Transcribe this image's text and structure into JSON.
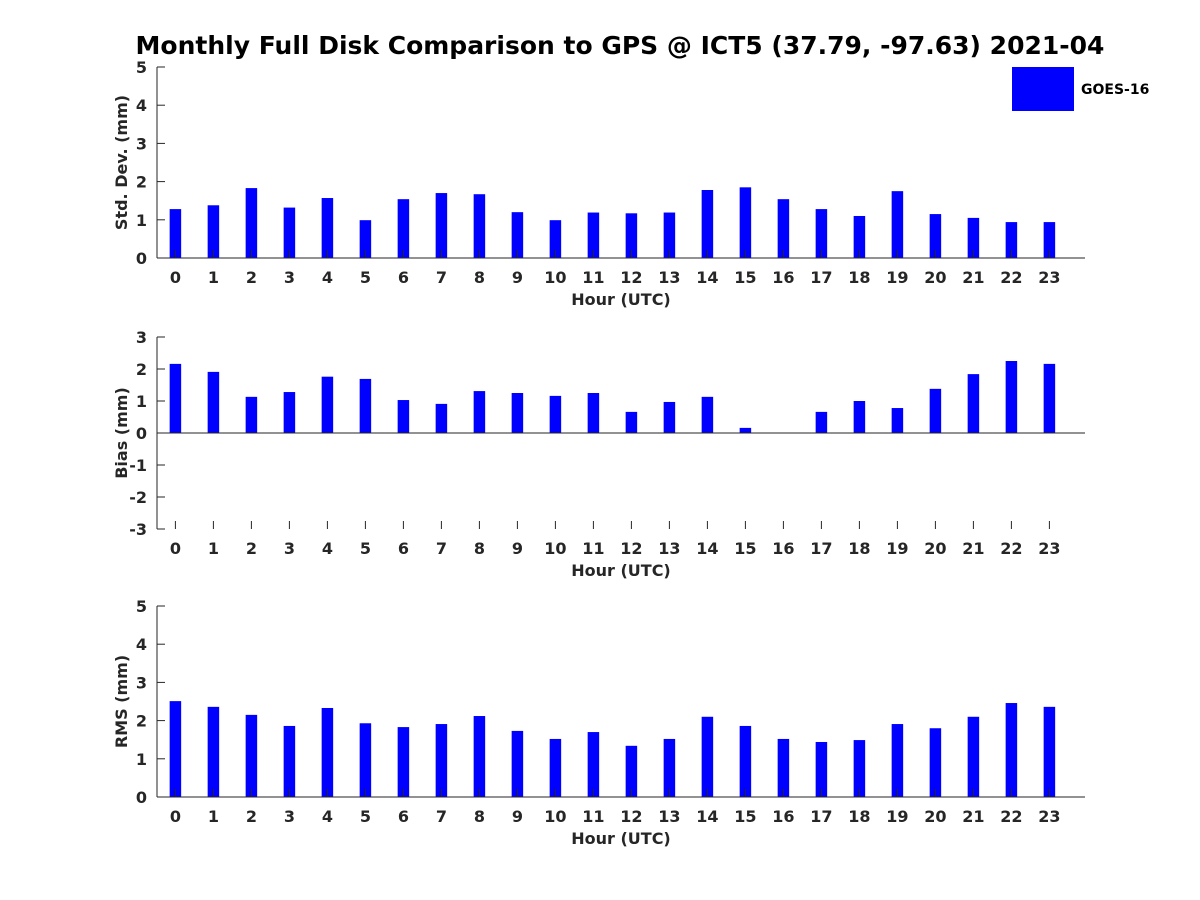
{
  "chart_data": {
    "type": "bar",
    "title": "Monthly Full Disk Comparison to GPS @ ICT5 (37.79, -97.63) 2021-04",
    "legend": {
      "placement": "top-right",
      "entries": [
        "GOES-16"
      ]
    },
    "series_color": "#0000ff",
    "categories": [
      "0",
      "1",
      "2",
      "3",
      "4",
      "5",
      "6",
      "7",
      "8",
      "9",
      "10",
      "11",
      "12",
      "13",
      "14",
      "15",
      "16",
      "17",
      "18",
      "19",
      "20",
      "21",
      "22",
      "23"
    ],
    "panels": [
      {
        "ylabel": "Std. Dev. (mm)",
        "xlabel": "Hour (UTC)",
        "ylim": [
          0,
          5
        ],
        "yticks": [
          0,
          1,
          2,
          3,
          4,
          5
        ],
        "grid": false,
        "series": [
          {
            "name": "GOES-16",
            "values": [
              1.28,
              1.38,
              1.83,
              1.32,
              1.57,
              0.99,
              1.54,
              1.7,
              1.67,
              1.2,
              0.99,
              1.19,
              1.17,
              1.19,
              1.78,
              1.85,
              1.54,
              1.28,
              1.1,
              1.75,
              1.15,
              1.05,
              0.94,
              0.94
            ]
          }
        ]
      },
      {
        "ylabel": "Bias (mm)",
        "xlabel": "Hour (UTC)",
        "ylim": [
          -3,
          3
        ],
        "yticks": [
          -3,
          -2,
          -1,
          0,
          1,
          2,
          3
        ],
        "grid": false,
        "series": [
          {
            "name": "GOES-16",
            "values": [
              2.16,
              1.91,
              1.13,
              1.28,
              1.76,
              1.69,
              1.03,
              0.91,
              1.31,
              1.25,
              1.16,
              1.25,
              0.66,
              0.97,
              1.13,
              0.16,
              0.0,
              0.66,
              1.0,
              0.78,
              1.38,
              1.84,
              2.25,
              2.16
            ]
          }
        ]
      },
      {
        "ylabel": "RMS (mm)",
        "xlabel": "Hour (UTC)",
        "ylim": [
          0,
          5
        ],
        "yticks": [
          0,
          1,
          2,
          3,
          4,
          5
        ],
        "grid": false,
        "series": [
          {
            "name": "GOES-16",
            "values": [
              2.51,
              2.36,
              2.15,
              1.86,
              2.33,
              1.93,
              1.83,
              1.91,
              2.12,
              1.73,
              1.52,
              1.7,
              1.34,
              1.52,
              2.1,
              1.86,
              1.52,
              1.44,
              1.49,
              1.91,
              1.8,
              2.1,
              2.46,
              2.36
            ]
          }
        ]
      }
    ]
  }
}
